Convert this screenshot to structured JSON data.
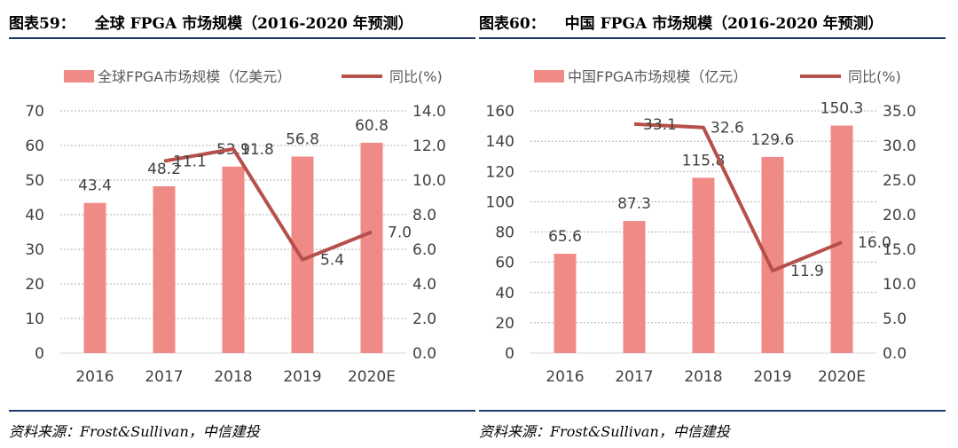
{
  "chart_data": [
    {
      "type": "bar",
      "figure_number": "图表59：",
      "title": "全球 FPGA 市场规模（2016-2020 年预测）",
      "categories": [
        "2016",
        "2017",
        "2018",
        "2019",
        "2020E"
      ],
      "series": [
        {
          "name": "全球FPGA市场规模（亿美元）",
          "kind": "bar",
          "axis": "left",
          "values": [
            43.4,
            48.2,
            53.9,
            56.8,
            60.8
          ],
          "labels": [
            "43.4",
            "48.2",
            "53.9",
            "56.8",
            "60.8"
          ]
        },
        {
          "name": "同比(%)",
          "kind": "line",
          "axis": "right",
          "values": [
            null,
            11.1,
            11.8,
            5.4,
            7.0
          ],
          "labels": [
            "",
            "11.1",
            "11.8",
            "5.4",
            "7.0"
          ]
        }
      ],
      "left_axis": {
        "min": 0,
        "max": 70,
        "ticks": [
          "0",
          "10",
          "20",
          "30",
          "40",
          "50",
          "60",
          "70"
        ]
      },
      "right_axis": {
        "min": 0,
        "max": 14,
        "ticks": [
          "0.0",
          "2.0",
          "4.0",
          "6.0",
          "8.0",
          "10.0",
          "12.0",
          "14.0"
        ]
      },
      "grid": true,
      "legend": "top",
      "source": "资料来源：Frost&Sullivan，中信建投"
    },
    {
      "type": "bar",
      "figure_number": "图表60：",
      "title": "中国 FPGA 市场规模（2016-2020 年预测）",
      "categories": [
        "2016",
        "2017",
        "2018",
        "2019",
        "2020E"
      ],
      "series": [
        {
          "name": "中国FPGA市场规模（亿元）",
          "kind": "bar",
          "axis": "left",
          "values": [
            65.6,
            87.3,
            115.8,
            129.6,
            150.3
          ],
          "labels": [
            "65.6",
            "87.3",
            "115.8",
            "129.6",
            "150.3"
          ]
        },
        {
          "name": "同比(%)",
          "kind": "line",
          "axis": "right",
          "values": [
            null,
            33.1,
            32.6,
            11.9,
            16.0
          ],
          "labels": [
            "",
            "33.1",
            "32.6",
            "11.9",
            "16.0"
          ]
        }
      ],
      "left_axis": {
        "min": 0,
        "max": 160,
        "ticks": [
          "0",
          "20",
          "40",
          "60",
          "80",
          "100",
          "120",
          "140",
          "160"
        ]
      },
      "right_axis": {
        "min": 0,
        "max": 35,
        "ticks": [
          "0.0",
          "5.0",
          "10.0",
          "15.0",
          "20.0",
          "25.0",
          "30.0",
          "35.0"
        ]
      },
      "grid": true,
      "legend": "top",
      "source": "资料来源：Frost&Sullivan，中信建投"
    }
  ],
  "colors": {
    "bar": "#f08a86",
    "line": "#b5504a",
    "rule": "#1f3a68",
    "grid": "#999999",
    "axis": "#d9d9d9"
  }
}
